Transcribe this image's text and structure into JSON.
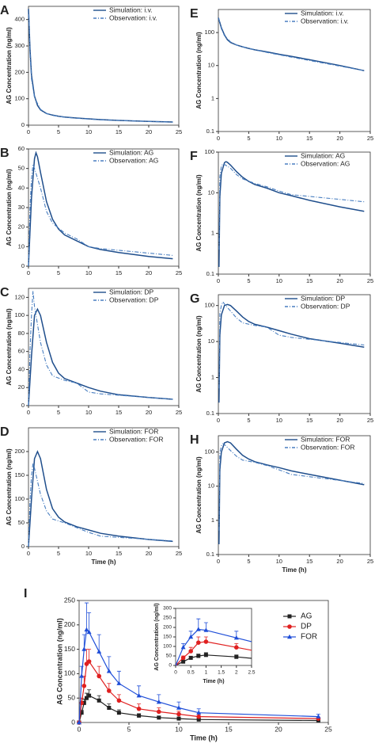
{
  "chart_data": [
    {
      "type": "line",
      "label": "A",
      "ylabel": "AG Concentration (ng/ml)",
      "log": false,
      "xlim": [
        0,
        25
      ],
      "xticks": [
        0,
        5,
        10,
        15,
        20,
        25
      ],
      "ylim": [
        0,
        450
      ],
      "yticks": [
        0,
        100,
        200,
        300,
        400
      ],
      "series": [
        {
          "name": "Simulation: i.v.",
          "color": "#1f4e8c",
          "dash": false,
          "x": [
            0,
            0.25,
            0.5,
            1,
            1.5,
            2,
            3,
            4,
            5,
            6,
            8,
            10,
            12,
            15,
            20,
            24
          ],
          "values": [
            440,
            290,
            190,
            110,
            75,
            58,
            44,
            38,
            34,
            31,
            27,
            24,
            21,
            18,
            14,
            12
          ]
        },
        {
          "name": "Observation: i.v.",
          "color": "#4a7fc1",
          "dash": true,
          "x": [
            0.08,
            0.25,
            0.5,
            1,
            2,
            3,
            4,
            6,
            8,
            12,
            24
          ],
          "values": [
            420,
            270,
            175,
            105,
            60,
            44,
            37,
            30,
            26,
            20,
            11
          ]
        }
      ]
    },
    {
      "type": "line",
      "label": "B",
      "ylabel": "AG Concentration (ng/ml)",
      "log": false,
      "xlim": [
        0,
        25
      ],
      "xticks": [
        0,
        5,
        10,
        15,
        20,
        25
      ],
      "ylim": [
        0,
        60
      ],
      "yticks": [
        0,
        10,
        20,
        30,
        40,
        50,
        60
      ],
      "series": [
        {
          "name": "Simulation: AG",
          "color": "#1f4e8c",
          "dash": false,
          "x": [
            0,
            0.5,
            1,
            1.25,
            1.5,
            2,
            3,
            4,
            5,
            6,
            8,
            10,
            12,
            15,
            20,
            24
          ],
          "values": [
            0,
            35,
            55,
            58,
            56,
            48,
            33,
            24,
            19,
            16,
            13,
            10,
            8.5,
            7,
            5,
            3.8
          ]
        },
        {
          "name": "Observation: AG",
          "color": "#4a7fc1",
          "dash": true,
          "x": [
            0,
            0.25,
            0.5,
            0.75,
            1,
            2,
            3,
            4,
            6,
            8,
            10,
            12,
            24
          ],
          "values": [
            0,
            30,
            45,
            52,
            50,
            40,
            28,
            22,
            17,
            14,
            10,
            9,
            5.5
          ]
        }
      ]
    },
    {
      "type": "line",
      "label": "C",
      "ylabel": "AG Concentration (ng/ml)",
      "log": false,
      "xlim": [
        0,
        25
      ],
      "xticks": [
        0,
        5,
        10,
        15,
        20,
        25
      ],
      "ylim": [
        0,
        130
      ],
      "yticks": [
        0,
        20,
        40,
        60,
        80,
        100,
        120
      ],
      "series": [
        {
          "name": "Simulation: DP",
          "color": "#1f4e8c",
          "dash": false,
          "x": [
            0,
            0.5,
            1,
            1.5,
            2,
            3,
            4,
            5,
            6,
            8,
            10,
            12,
            15,
            20,
            24
          ],
          "values": [
            0,
            55,
            100,
            107,
            100,
            70,
            48,
            36,
            30,
            25,
            20,
            16,
            12,
            9,
            7
          ]
        },
        {
          "name": "Observation: DP",
          "color": "#4a7fc1",
          "dash": true,
          "x": [
            0,
            0.25,
            0.5,
            0.75,
            1,
            2,
            3,
            4,
            6,
            8,
            10,
            12,
            24
          ],
          "values": [
            0,
            60,
            100,
            127,
            110,
            70,
            45,
            33,
            28,
            25,
            15,
            13,
            7
          ]
        }
      ]
    },
    {
      "type": "line",
      "label": "D",
      "ylabel": "AG Concentration (ng/ml)",
      "xlabel": "Time (h)",
      "log": false,
      "xlim": [
        0,
        25
      ],
      "xticks": [
        0,
        5,
        10,
        15,
        20,
        25
      ],
      "ylim": [
        0,
        250
      ],
      "yticks": [
        0,
        50,
        100,
        150,
        200
      ],
      "series": [
        {
          "name": "Simulation: FOR",
          "color": "#1f4e8c",
          "dash": false,
          "x": [
            0,
            0.5,
            1,
            1.5,
            2,
            3,
            4,
            5,
            6,
            8,
            10,
            12,
            15,
            20,
            24
          ],
          "values": [
            0,
            100,
            185,
            200,
            185,
            120,
            80,
            62,
            52,
            42,
            35,
            28,
            22,
            15,
            11
          ]
        },
        {
          "name": "Observation: FOR",
          "color": "#4a7fc1",
          "dash": true,
          "x": [
            0,
            0.25,
            0.5,
            0.75,
            1,
            2,
            3,
            4,
            6,
            8,
            10,
            12,
            24
          ],
          "values": [
            0,
            95,
            150,
            175,
            165,
            110,
            75,
            58,
            50,
            40,
            30,
            22,
            12
          ]
        }
      ]
    },
    {
      "type": "line",
      "label": "E",
      "ylabel": "AG Concentration (ng/ml)",
      "log": true,
      "xlim": [
        0,
        25
      ],
      "xticks": [
        0,
        5,
        10,
        15,
        20,
        25
      ],
      "ylim": [
        0.1,
        500
      ],
      "yticks": [
        0.1,
        1,
        10,
        100
      ],
      "series": [
        {
          "name": "Simulation: i.v.",
          "color": "#1f4e8c",
          "dash": false,
          "x": [
            0,
            0.25,
            0.5,
            1,
            1.5,
            2,
            3,
            4,
            5,
            6,
            8,
            10,
            12,
            15,
            20,
            24
          ],
          "values": [
            280,
            200,
            140,
            85,
            60,
            50,
            42,
            37,
            33,
            30,
            26,
            22,
            19,
            15,
            10,
            7
          ]
        },
        {
          "name": "Observation: i.v.",
          "color": "#4a7fc1",
          "dash": true,
          "x": [
            0.08,
            0.25,
            0.5,
            1,
            2,
            3,
            4,
            6,
            8,
            12,
            24
          ],
          "values": [
            270,
            190,
            130,
            80,
            52,
            42,
            37,
            30,
            25,
            18,
            7
          ]
        }
      ]
    },
    {
      "type": "line",
      "label": "F",
      "ylabel": "AG Concentration (ng/ml)",
      "log": true,
      "xlim": [
        0,
        25
      ],
      "xticks": [
        0,
        5,
        10,
        15,
        20,
        25
      ],
      "ylim": [
        0.1,
        100
      ],
      "yticks": [
        0.1,
        1,
        10,
        100
      ],
      "series": [
        {
          "name": "Simulation: AG",
          "color": "#1f4e8c",
          "dash": false,
          "x": [
            0.1,
            0.25,
            0.5,
            1,
            1.25,
            1.5,
            2,
            3,
            4,
            5,
            6,
            8,
            10,
            12,
            15,
            20,
            24
          ],
          "values": [
            0.15,
            8,
            30,
            55,
            58,
            56,
            48,
            33,
            24,
            19,
            16,
            13,
            10,
            8.5,
            6.5,
            4.5,
            3.5
          ]
        },
        {
          "name": "Observation: AG",
          "color": "#4a7fc1",
          "dash": true,
          "x": [
            0.1,
            0.25,
            0.5,
            0.75,
            1,
            2,
            3,
            4,
            6,
            8,
            10,
            12,
            24
          ],
          "values": [
            0.4,
            25,
            45,
            52,
            50,
            40,
            28,
            22,
            17,
            14,
            11,
            9,
            6
          ]
        }
      ]
    },
    {
      "type": "line",
      "label": "G",
      "ylabel": "AG Concentration (ng/ml)",
      "log": true,
      "xlim": [
        0,
        25
      ],
      "xticks": [
        0,
        5,
        10,
        15,
        20,
        25
      ],
      "ylim": [
        0.1,
        200
      ],
      "yticks": [
        0.1,
        1,
        10,
        100
      ],
      "series": [
        {
          "name": "Simulation: DP",
          "color": "#1f4e8c",
          "dash": false,
          "x": [
            0.1,
            0.25,
            0.5,
            1,
            1.5,
            2,
            3,
            4,
            5,
            6,
            8,
            10,
            12,
            15,
            20,
            24
          ],
          "values": [
            0.2,
            15,
            55,
            100,
            107,
            100,
            70,
            48,
            36,
            30,
            25,
            20,
            16,
            12,
            9,
            7
          ]
        },
        {
          "name": "Observation: DP",
          "color": "#4a7fc1",
          "dash": true,
          "x": [
            0.1,
            0.25,
            0.5,
            0.75,
            1,
            2,
            3,
            4,
            6,
            8,
            10,
            12,
            24
          ],
          "values": [
            0.5,
            60,
            100,
            127,
            110,
            70,
            45,
            33,
            28,
            25,
            15,
            13,
            8
          ]
        }
      ]
    },
    {
      "type": "line",
      "label": "H",
      "ylabel": "AG Concentration (ng/ml)",
      "xlabel": "Time (h)",
      "log": true,
      "xlim": [
        0,
        25
      ],
      "xticks": [
        0,
        5,
        10,
        15,
        20,
        25
      ],
      "ylim": [
        0.1,
        300
      ],
      "yticks": [
        0.1,
        1,
        10,
        100
      ],
      "series": [
        {
          "name": "Simulation: FOR",
          "color": "#1f4e8c",
          "dash": false,
          "x": [
            0.1,
            0.25,
            0.5,
            1,
            1.5,
            2,
            3,
            4,
            5,
            6,
            8,
            10,
            12,
            15,
            20,
            24
          ],
          "values": [
            0.2,
            30,
            100,
            185,
            200,
            185,
            120,
            80,
            62,
            52,
            42,
            35,
            28,
            22,
            15,
            11
          ]
        },
        {
          "name": "Observation: FOR",
          "color": "#4a7fc1",
          "dash": true,
          "x": [
            0.1,
            0.25,
            0.5,
            0.75,
            1,
            2,
            3,
            4,
            6,
            8,
            10,
            12,
            24
          ],
          "values": [
            0.5,
            95,
            150,
            175,
            165,
            110,
            75,
            58,
            50,
            40,
            30,
            22,
            12
          ]
        }
      ]
    },
    {
      "type": "errorline",
      "label": "I",
      "ylabel": "AG Concentration (ng/ml)",
      "xlabel": "Time (h)",
      "log": false,
      "xlim": [
        0,
        25
      ],
      "xticks": [
        0,
        5,
        10,
        15,
        20,
        25
      ],
      "ylim": [
        0,
        250
      ],
      "yticks": [
        0,
        50,
        100,
        150,
        200,
        250
      ],
      "x": [
        0,
        0.25,
        0.5,
        0.75,
        1,
        2,
        3,
        4,
        6,
        8,
        10,
        12,
        24
      ],
      "series": [
        {
          "name": "AG",
          "color": "#222222",
          "marker": "square",
          "values": [
            0,
            20,
            40,
            50,
            55,
            45,
            30,
            20,
            14,
            10,
            8,
            6,
            4
          ],
          "errors": [
            0,
            5,
            8,
            10,
            12,
            10,
            8,
            6,
            4,
            3,
            3,
            2,
            2
          ]
        },
        {
          "name": "DP",
          "color": "#e02020",
          "marker": "circle",
          "values": [
            0,
            40,
            75,
            120,
            125,
            95,
            65,
            45,
            28,
            22,
            17,
            12,
            8
          ],
          "errors": [
            0,
            10,
            20,
            30,
            25,
            20,
            15,
            12,
            10,
            8,
            6,
            5,
            3
          ]
        },
        {
          "name": "FOR",
          "color": "#1f4ed8",
          "marker": "triangle",
          "values": [
            0,
            95,
            150,
            190,
            185,
            145,
            105,
            80,
            55,
            42,
            30,
            20,
            12
          ],
          "errors": [
            0,
            20,
            30,
            55,
            40,
            35,
            30,
            25,
            20,
            15,
            12,
            8,
            5
          ]
        }
      ],
      "inset": {
        "ylabel": "AG Concentration (ng/ml)",
        "xlabel": "Time (h)",
        "xlim": [
          0,
          2.5
        ],
        "xticks": [
          0,
          0.5,
          1,
          1.5,
          2,
          2.5
        ],
        "ylim": [
          0,
          300
        ],
        "yticks": [
          0,
          50,
          100,
          150,
          200,
          250,
          300
        ]
      }
    }
  ]
}
